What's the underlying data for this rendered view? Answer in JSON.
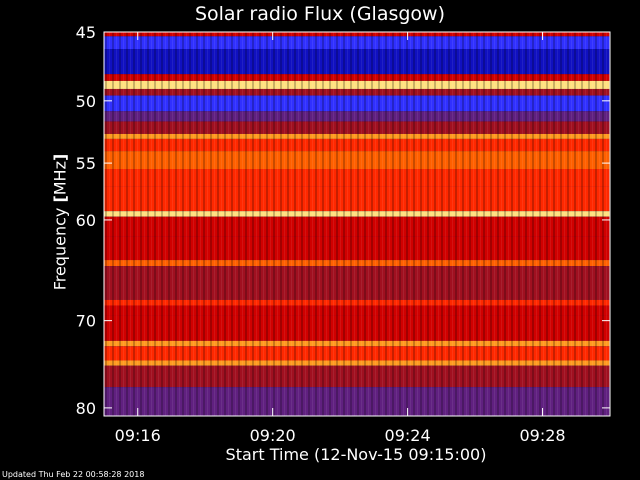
{
  "chart_data": {
    "type": "heatmap",
    "title": "Solar radio Flux (Glasgow)",
    "xlabel": "Start Time (12-Nov-15 09:15:00)",
    "ylabel": {
      "pre": "Frequency ",
      "open": "[",
      "unit": "MHz",
      "close": "]"
    },
    "x_ticks": [
      "09:16",
      "09:20",
      "09:24",
      "09:28"
    ],
    "y_ticks": [
      "45",
      "50",
      "55",
      "60",
      "70",
      "80"
    ],
    "y_scale": "log",
    "ylim": [
      45,
      81
    ],
    "xlim_minutes": [
      0,
      15
    ],
    "x_tick_minutes": [
      1,
      5,
      9,
      13
    ],
    "colormap": [
      "#000060",
      "#1010c0",
      "#3030ff",
      "#602080",
      "#a01020",
      "#d00000",
      "#ff2800",
      "#ff6000",
      "#ff9a20",
      "#ffe080"
    ],
    "bands": [
      {
        "f_from": 45.0,
        "f_to": 45.3,
        "level": 0.55
      },
      {
        "f_from": 45.3,
        "f_to": 46.2,
        "level": 0.18
      },
      {
        "f_from": 46.2,
        "f_to": 48.0,
        "level": 0.12
      },
      {
        "f_from": 48.0,
        "f_to": 48.5,
        "level": 0.55
      },
      {
        "f_from": 48.5,
        "f_to": 49.1,
        "level": 0.97
      },
      {
        "f_from": 49.1,
        "f_to": 49.6,
        "level": 0.45
      },
      {
        "f_from": 49.6,
        "f_to": 50.8,
        "level": 0.22
      },
      {
        "f_from": 50.8,
        "f_to": 51.6,
        "level": 0.32
      },
      {
        "f_from": 51.6,
        "f_to": 52.6,
        "level": 0.4
      },
      {
        "f_from": 52.6,
        "f_to": 53.0,
        "level": 0.92
      },
      {
        "f_from": 53.0,
        "f_to": 54.0,
        "level": 0.7
      },
      {
        "f_from": 54.0,
        "f_to": 55.5,
        "level": 0.8
      },
      {
        "f_from": 55.5,
        "f_to": 57.0,
        "level": 0.72
      },
      {
        "f_from": 57.0,
        "f_to": 59.2,
        "level": 0.62
      },
      {
        "f_from": 59.2,
        "f_to": 59.7,
        "level": 0.97
      },
      {
        "f_from": 59.7,
        "f_to": 61.5,
        "level": 0.58
      },
      {
        "f_from": 61.5,
        "f_to": 63.8,
        "level": 0.5
      },
      {
        "f_from": 63.8,
        "f_to": 64.4,
        "level": 0.82
      },
      {
        "f_from": 64.4,
        "f_to": 67.8,
        "level": 0.42
      },
      {
        "f_from": 67.8,
        "f_to": 68.4,
        "level": 0.72
      },
      {
        "f_from": 68.4,
        "f_to": 69.5,
        "level": 0.55
      },
      {
        "f_from": 69.5,
        "f_to": 72.2,
        "level": 0.6
      },
      {
        "f_from": 72.2,
        "f_to": 72.8,
        "level": 0.9
      },
      {
        "f_from": 72.8,
        "f_to": 74.4,
        "level": 0.65
      },
      {
        "f_from": 74.4,
        "f_to": 75.0,
        "level": 0.85
      },
      {
        "f_from": 75.0,
        "f_to": 77.5,
        "level": 0.45
      },
      {
        "f_from": 77.5,
        "f_to": 81.0,
        "level": 0.35
      }
    ]
  },
  "footer": {
    "updated": "Updated Thu Feb 22 00:58:28 2018"
  }
}
